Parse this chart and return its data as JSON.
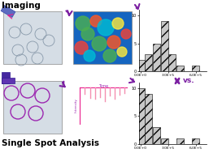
{
  "title_top": "Imaging",
  "title_bottom": "Single Spot Analysis",
  "vs_text": "vs.",
  "hist_top": {
    "bar_heights": [
      2,
      3,
      5,
      9,
      3,
      1,
      0,
      1
    ],
    "bar_color": "#c8c8c8",
    "hatch": "///",
    "xlim": [
      -20000.0,
      720000.0
    ],
    "ylim": [
      0,
      11
    ],
    "xticks": [
      0,
      300000.0,
      600000.0
    ],
    "xticklabels": [
      "0.0E+0",
      "3.0E+5",
      "6.0E+5"
    ],
    "yticks": [
      0,
      5,
      10
    ]
  },
  "hist_bottom": {
    "bar_heights": [
      10,
      9,
      3,
      1,
      0,
      1,
      0,
      1
    ],
    "bar_color": "#c8c8c8",
    "hatch": "///",
    "xlim": [
      -20000.0,
      720000.0
    ],
    "ylim": [
      0,
      11
    ],
    "xticks": [
      0,
      300000.0,
      600000.0
    ],
    "xticklabels": [
      "0.0E+0",
      "3.0E+5",
      "6.0E+5"
    ],
    "yticks": [
      0,
      5,
      10
    ]
  },
  "arrow_color": "#7b1fa2",
  "bg_color": "#ffffff"
}
